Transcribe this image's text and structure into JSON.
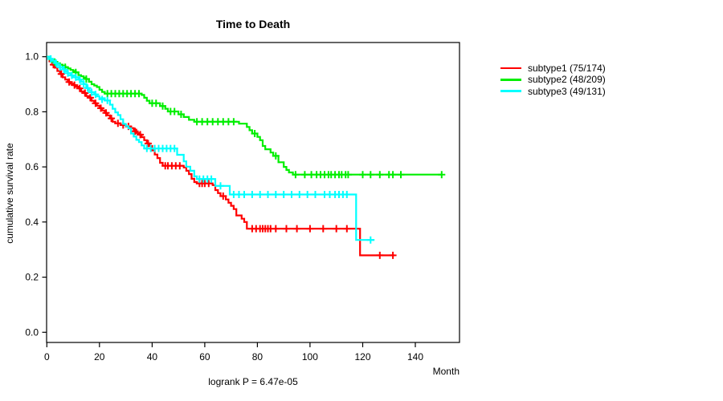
{
  "chart_data": {
    "type": "line",
    "subtype": "kaplan-meier-step",
    "title": "Time to Death",
    "xlabel": "Month",
    "ylabel": "cumulative survival rate",
    "footnote": "logrank P = 6.47e-05",
    "xticks": [
      0,
      20,
      40,
      60,
      80,
      100,
      120,
      140
    ],
    "yticks": [
      "0.0",
      "0.2",
      "0.4",
      "0.6",
      "0.8",
      "1.0"
    ],
    "xlim": [
      0,
      156.8
    ],
    "ylim": [
      0.0,
      1.0
    ],
    "grid": false,
    "legend_position": "right-outside",
    "series": [
      {
        "name": "subtype1",
        "legend_label": "subtype1 (75/174)",
        "color": "#ff0000",
        "start": [
          0,
          1.0
        ],
        "end_month": 132,
        "steps": [
          [
            1,
            0.983
          ],
          [
            2,
            0.971
          ],
          [
            3,
            0.96
          ],
          [
            4,
            0.948
          ],
          [
            5,
            0.937
          ],
          [
            6,
            0.925
          ],
          [
            7,
            0.917
          ],
          [
            8,
            0.908
          ],
          [
            9,
            0.902
          ],
          [
            10,
            0.897
          ],
          [
            11,
            0.891
          ],
          [
            12,
            0.885
          ],
          [
            13,
            0.874
          ],
          [
            14,
            0.868
          ],
          [
            15,
            0.857
          ],
          [
            16,
            0.851
          ],
          [
            17,
            0.84
          ],
          [
            18,
            0.831
          ],
          [
            19,
            0.822
          ],
          [
            20,
            0.813
          ],
          [
            21,
            0.805
          ],
          [
            22,
            0.796
          ],
          [
            23,
            0.787
          ],
          [
            24,
            0.776
          ],
          [
            25,
            0.764
          ],
          [
            26,
            0.758
          ],
          [
            28,
            0.752
          ],
          [
            30,
            0.747
          ],
          [
            32,
            0.741
          ],
          [
            33,
            0.735
          ],
          [
            34,
            0.723
          ],
          [
            35,
            0.717
          ],
          [
            36,
            0.708
          ],
          [
            37,
            0.697
          ],
          [
            38,
            0.685
          ],
          [
            39,
            0.676
          ],
          [
            40,
            0.66
          ],
          [
            41,
            0.645
          ],
          [
            42,
            0.632
          ],
          [
            43,
            0.615
          ],
          [
            44,
            0.604
          ],
          [
            52,
            0.598
          ],
          [
            53,
            0.586
          ],
          [
            54,
            0.574
          ],
          [
            55,
            0.557
          ],
          [
            56,
            0.545
          ],
          [
            57,
            0.54
          ],
          [
            63,
            0.534
          ],
          [
            64,
            0.516
          ],
          [
            65,
            0.505
          ],
          [
            66,
            0.494
          ],
          [
            68,
            0.482
          ],
          [
            69,
            0.47
          ],
          [
            70,
            0.459
          ],
          [
            71,
            0.447
          ],
          [
            72,
            0.424
          ],
          [
            74,
            0.412
          ],
          [
            75,
            0.4
          ],
          [
            76,
            0.376
          ],
          [
            119,
            0.279
          ]
        ],
        "censors": [
          [
            2.5,
            0.971
          ],
          [
            5.5,
            0.937
          ],
          [
            8.5,
            0.908
          ],
          [
            10.5,
            0.897
          ],
          [
            12.5,
            0.885
          ],
          [
            14.5,
            0.868
          ],
          [
            16.5,
            0.851
          ],
          [
            18.5,
            0.831
          ],
          [
            20.5,
            0.813
          ],
          [
            22.5,
            0.796
          ],
          [
            24.5,
            0.776
          ],
          [
            27,
            0.758
          ],
          [
            29,
            0.752
          ],
          [
            31,
            0.747
          ],
          [
            33.5,
            0.729
          ],
          [
            35.5,
            0.717
          ],
          [
            38.5,
            0.685
          ],
          [
            45,
            0.604
          ],
          [
            46,
            0.604
          ],
          [
            47.5,
            0.604
          ],
          [
            49,
            0.604
          ],
          [
            50.5,
            0.604
          ],
          [
            58,
            0.54
          ],
          [
            59,
            0.54
          ],
          [
            60,
            0.54
          ],
          [
            61.5,
            0.54
          ],
          [
            67,
            0.494
          ],
          [
            78,
            0.376
          ],
          [
            79.5,
            0.376
          ],
          [
            81,
            0.376
          ],
          [
            82,
            0.376
          ],
          [
            83,
            0.376
          ],
          [
            84,
            0.376
          ],
          [
            85,
            0.376
          ],
          [
            87,
            0.376
          ],
          [
            91,
            0.376
          ],
          [
            95,
            0.376
          ],
          [
            100,
            0.376
          ],
          [
            105,
            0.376
          ],
          [
            110,
            0.376
          ],
          [
            114,
            0.376
          ],
          [
            126.5,
            0.279
          ],
          [
            131.5,
            0.279
          ]
        ]
      },
      {
        "name": "subtype2",
        "legend_label": "subtype2 (48/209)",
        "color": "#00ee00",
        "start": [
          0,
          1.0
        ],
        "end_month": 150,
        "steps": [
          [
            1,
            0.99
          ],
          [
            2,
            0.986
          ],
          [
            3,
            0.981
          ],
          [
            4,
            0.976
          ],
          [
            5,
            0.971
          ],
          [
            6,
            0.967
          ],
          [
            7,
            0.962
          ],
          [
            8,
            0.957
          ],
          [
            9,
            0.952
          ],
          [
            10,
            0.948
          ],
          [
            11,
            0.943
          ],
          [
            12,
            0.933
          ],
          [
            13,
            0.929
          ],
          [
            14,
            0.924
          ],
          [
            15,
            0.919
          ],
          [
            16,
            0.909
          ],
          [
            17,
            0.9
          ],
          [
            18,
            0.895
          ],
          [
            19,
            0.89
          ],
          [
            20,
            0.88
          ],
          [
            21,
            0.872
          ],
          [
            22,
            0.866
          ],
          [
            36,
            0.861
          ],
          [
            37,
            0.851
          ],
          [
            38,
            0.84
          ],
          [
            39,
            0.831
          ],
          [
            43,
            0.821
          ],
          [
            45,
            0.811
          ],
          [
            46,
            0.801
          ],
          [
            50,
            0.791
          ],
          [
            52,
            0.781
          ],
          [
            54,
            0.771
          ],
          [
            56,
            0.764
          ],
          [
            73,
            0.757
          ],
          [
            76,
            0.745
          ],
          [
            77,
            0.733
          ],
          [
            78,
            0.721
          ],
          [
            80,
            0.709
          ],
          [
            81,
            0.697
          ],
          [
            82,
            0.676
          ],
          [
            83,
            0.664
          ],
          [
            85,
            0.652
          ],
          [
            86,
            0.64
          ],
          [
            88,
            0.617
          ],
          [
            90,
            0.6
          ],
          [
            91,
            0.589
          ],
          [
            92,
            0.58
          ],
          [
            93.5,
            0.572
          ]
        ],
        "censors": [
          [
            3,
            0.981
          ],
          [
            7,
            0.962
          ],
          [
            11,
            0.943
          ],
          [
            15,
            0.919
          ],
          [
            23,
            0.866
          ],
          [
            24.5,
            0.866
          ],
          [
            26,
            0.866
          ],
          [
            27.5,
            0.866
          ],
          [
            29,
            0.866
          ],
          [
            30.5,
            0.866
          ],
          [
            32,
            0.866
          ],
          [
            33.5,
            0.866
          ],
          [
            35,
            0.866
          ],
          [
            40,
            0.831
          ],
          [
            41.5,
            0.831
          ],
          [
            44,
            0.821
          ],
          [
            47,
            0.801
          ],
          [
            48.5,
            0.801
          ],
          [
            51,
            0.791
          ],
          [
            57,
            0.764
          ],
          [
            59,
            0.764
          ],
          [
            61,
            0.764
          ],
          [
            63,
            0.764
          ],
          [
            65,
            0.764
          ],
          [
            67,
            0.764
          ],
          [
            69,
            0.764
          ],
          [
            71,
            0.764
          ],
          [
            79,
            0.721
          ],
          [
            87,
            0.64
          ],
          [
            94.5,
            0.572
          ],
          [
            98,
            0.572
          ],
          [
            100.5,
            0.572
          ],
          [
            102.5,
            0.572
          ],
          [
            104,
            0.572
          ],
          [
            105.5,
            0.572
          ],
          [
            107,
            0.572
          ],
          [
            108,
            0.572
          ],
          [
            109.5,
            0.572
          ],
          [
            111,
            0.572
          ],
          [
            112,
            0.572
          ],
          [
            113.5,
            0.572
          ],
          [
            114.5,
            0.572
          ],
          [
            120,
            0.572
          ],
          [
            123,
            0.572
          ],
          [
            126.5,
            0.572
          ],
          [
            130,
            0.572
          ],
          [
            131.5,
            0.572
          ],
          [
            134.5,
            0.572
          ],
          [
            150,
            0.572
          ]
        ]
      },
      {
        "name": "subtype3",
        "legend_label": "subtype3 (49/131)",
        "color": "#00ffff",
        "start": [
          0,
          1.0
        ],
        "end_month": 124.5,
        "steps": [
          [
            1,
            0.992
          ],
          [
            2,
            0.985
          ],
          [
            3,
            0.977
          ],
          [
            4,
            0.969
          ],
          [
            5,
            0.962
          ],
          [
            6,
            0.954
          ],
          [
            7,
            0.947
          ],
          [
            8,
            0.94
          ],
          [
            9,
            0.932
          ],
          [
            10,
            0.925
          ],
          [
            12,
            0.917
          ],
          [
            13,
            0.909
          ],
          [
            14,
            0.901
          ],
          [
            15,
            0.886
          ],
          [
            16,
            0.878
          ],
          [
            17,
            0.871
          ],
          [
            18,
            0.863
          ],
          [
            19,
            0.856
          ],
          [
            20,
            0.849
          ],
          [
            22,
            0.841
          ],
          [
            24,
            0.826
          ],
          [
            25,
            0.811
          ],
          [
            26,
            0.798
          ],
          [
            27,
            0.788
          ],
          [
            28,
            0.773
          ],
          [
            29,
            0.756
          ],
          [
            30,
            0.748
          ],
          [
            31,
            0.74
          ],
          [
            32,
            0.721
          ],
          [
            33,
            0.71
          ],
          [
            34,
            0.698
          ],
          [
            35,
            0.69
          ],
          [
            36,
            0.678
          ],
          [
            37,
            0.667
          ],
          [
            49.5,
            0.644
          ],
          [
            52,
            0.62
          ],
          [
            53,
            0.601
          ],
          [
            54.5,
            0.586
          ],
          [
            56,
            0.566
          ],
          [
            57,
            0.556
          ],
          [
            64,
            0.531
          ],
          [
            69.5,
            0.5
          ],
          [
            117.5,
            0.335
          ]
        ],
        "censors": [
          [
            1.5,
            0.992
          ],
          [
            3.5,
            0.977
          ],
          [
            5,
            0.962
          ],
          [
            6.5,
            0.954
          ],
          [
            8,
            0.94
          ],
          [
            9.5,
            0.932
          ],
          [
            11,
            0.925
          ],
          [
            12.5,
            0.917
          ],
          [
            14,
            0.901
          ],
          [
            15.5,
            0.886
          ],
          [
            17,
            0.871
          ],
          [
            18.5,
            0.863
          ],
          [
            21,
            0.845
          ],
          [
            23,
            0.841
          ],
          [
            38,
            0.667
          ],
          [
            39.5,
            0.667
          ],
          [
            41,
            0.667
          ],
          [
            42.5,
            0.667
          ],
          [
            44,
            0.667
          ],
          [
            45.5,
            0.667
          ],
          [
            47,
            0.667
          ],
          [
            48.5,
            0.667
          ],
          [
            58,
            0.556
          ],
          [
            59.5,
            0.556
          ],
          [
            61,
            0.556
          ],
          [
            62.5,
            0.556
          ],
          [
            66,
            0.531
          ],
          [
            71,
            0.5
          ],
          [
            73,
            0.5
          ],
          [
            75,
            0.5
          ],
          [
            78,
            0.5
          ],
          [
            81,
            0.5
          ],
          [
            84,
            0.5
          ],
          [
            87,
            0.5
          ],
          [
            90,
            0.5
          ],
          [
            93,
            0.5
          ],
          [
            96,
            0.5
          ],
          [
            99,
            0.5
          ],
          [
            102,
            0.5
          ],
          [
            105.5,
            0.5
          ],
          [
            107.5,
            0.5
          ],
          [
            109.5,
            0.5
          ],
          [
            111,
            0.5
          ],
          [
            112.5,
            0.5
          ],
          [
            114,
            0.5
          ],
          [
            123,
            0.335
          ]
        ]
      }
    ]
  }
}
